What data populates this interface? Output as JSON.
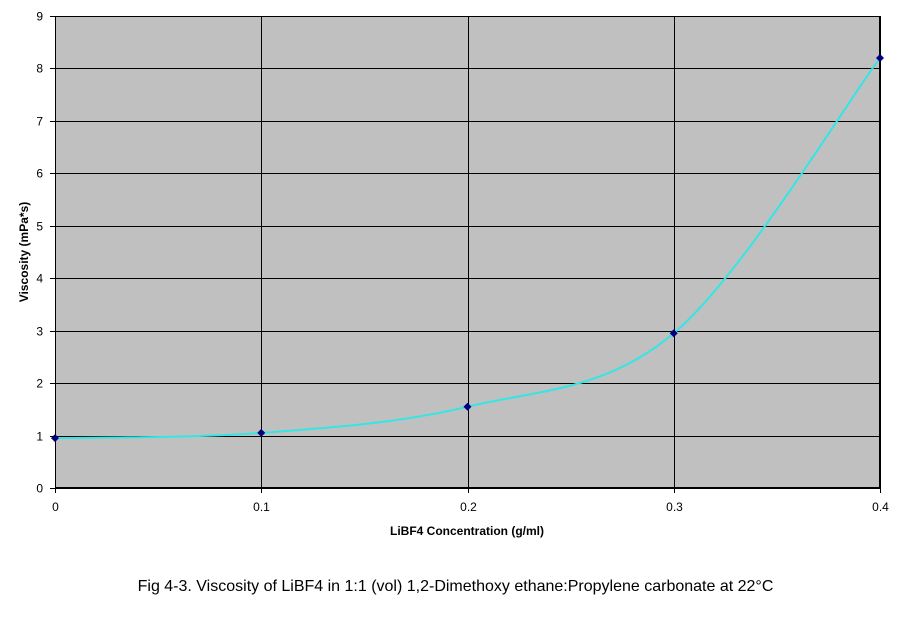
{
  "caption": "Fig 4-3. Viscosity of LiBF4 in 1:1 (vol) 1,2-Dimethoxy ethane:Propylene carbonate at 22°C",
  "chart_data": {
    "type": "scatter",
    "title": "",
    "xlabel": "LiBF4 Concentration (g/ml)",
    "ylabel": "Viscosity (mPa*s)",
    "xlim": [
      0,
      0.4
    ],
    "ylim": [
      0,
      9
    ],
    "x_ticks": [
      "0",
      "0.1",
      "0.2",
      "0.3",
      "0.4"
    ],
    "y_ticks": [
      "0",
      "1",
      "2",
      "3",
      "4",
      "5",
      "6",
      "7",
      "8",
      "9"
    ],
    "grid": true,
    "legend": "none",
    "series": [
      {
        "x": [
          0,
          0.1,
          0.2,
          0.3,
          0.4
        ],
        "y": [
          0.95,
          1.05,
          1.55,
          2.95,
          8.2
        ],
        "marker": "diamond",
        "marker_color": "#000080",
        "line": "smooth",
        "line_color": "#33e6e6"
      }
    ],
    "plot_background": "#c0c0c0",
    "grid_color": "#000000"
  }
}
